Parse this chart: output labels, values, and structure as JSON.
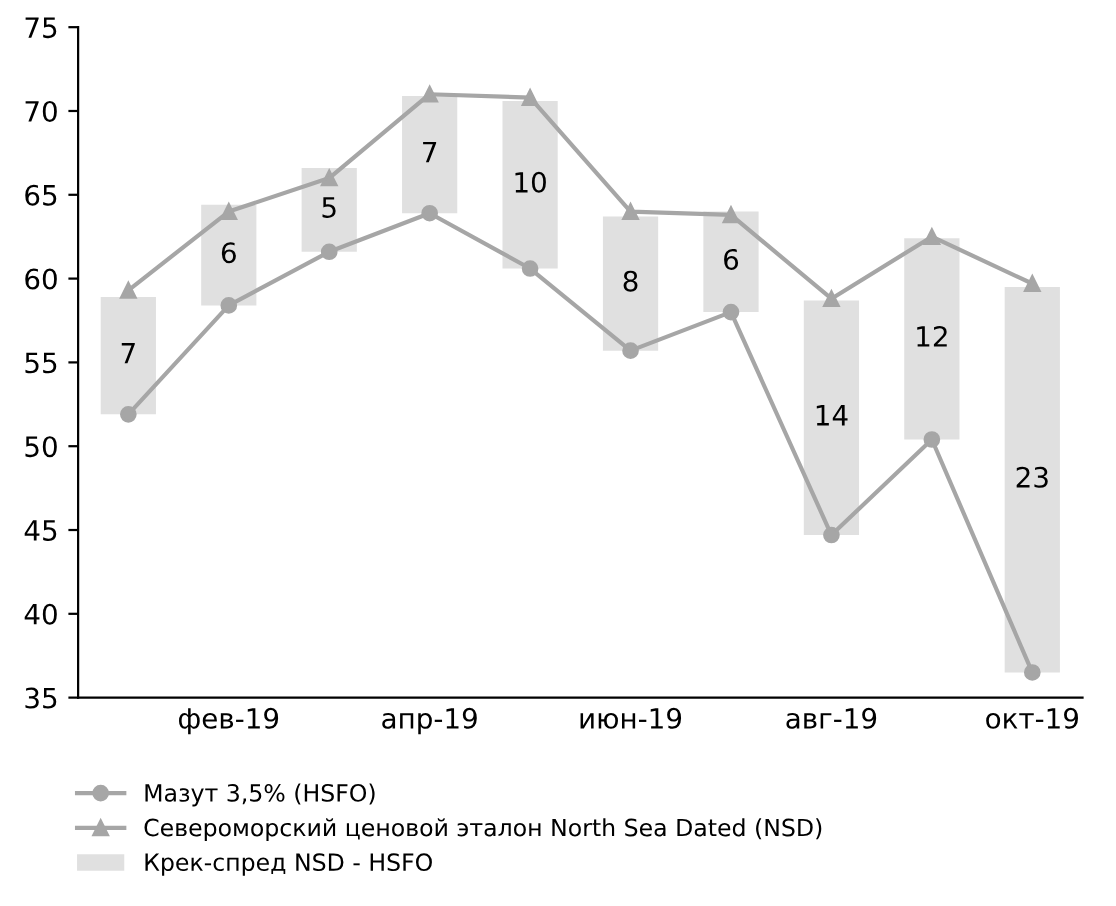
{
  "chart_data": {
    "type": "line",
    "categories": [
      null,
      "фев-19",
      null,
      "апр-19",
      null,
      "июн-19",
      null,
      "авг-19",
      null,
      "окт-19"
    ],
    "ylim": [
      35,
      75
    ],
    "yticks": [
      35,
      40,
      45,
      50,
      55,
      60,
      65,
      70,
      75
    ],
    "grid": false,
    "legend": "bottom left",
    "series": [
      {
        "name": "Мазут 3,5% (HSFO)",
        "color": "#a6a6a6",
        "marker": "circle",
        "values": [
          51.9,
          58.4,
          61.6,
          63.9,
          60.6,
          55.7,
          58.0,
          44.7,
          50.4,
          36.5
        ]
      },
      {
        "name": "Североморский ценовой эталон North Sea Dated (NSD)",
        "color": "#a6a6a6",
        "marker": "triangle",
        "values": [
          59.3,
          64.0,
          66.0,
          71.0,
          70.8,
          64.0,
          63.8,
          58.8,
          62.5,
          59.7
        ]
      },
      {
        "name": "Крек-спред NSD - HSFO",
        "type": "bar",
        "color": "#e0e0e0",
        "base": [
          51.9,
          58.4,
          61.6,
          63.9,
          60.6,
          55.7,
          58.0,
          44.7,
          50.4,
          36.5
        ],
        "values": [
          7,
          6,
          5,
          7,
          10,
          8,
          6,
          14,
          12,
          23
        ],
        "value_labels": [
          "7",
          "6",
          "5",
          "7",
          "10",
          "8",
          "6",
          "14",
          "12",
          "23"
        ]
      }
    ]
  }
}
